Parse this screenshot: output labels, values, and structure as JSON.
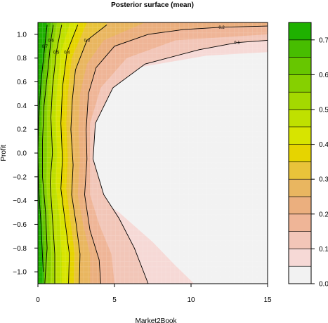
{
  "chart_data": {
    "type": "heatmap",
    "title": "Posterior surface (mean)",
    "xlabel": "Market2Book",
    "ylabel": "Profit",
    "xlim": [
      0,
      15
    ],
    "ylim": [
      -1.1,
      1.1
    ],
    "x_ticks": [
      "0",
      "5",
      "10",
      "15"
    ],
    "y_ticks": [
      "1.0",
      "0.8",
      "0.6",
      "0.4",
      "0.2",
      "0.0",
      "−0.2",
      "−0.4",
      "−0.6",
      "−0.8",
      "−1.0"
    ],
    "colorbar": {
      "levels": [
        0.0,
        0.05,
        0.1,
        0.15,
        0.2,
        0.25,
        0.3,
        0.35,
        0.4,
        0.45,
        0.5,
        0.55,
        0.6,
        0.65,
        0.7,
        0.75
      ],
      "tick_labels": [
        "0.0",
        "0.1",
        "0.2",
        "0.3",
        "0.4",
        "0.5",
        "0.6",
        "0.7"
      ],
      "colors": [
        "#f2f2f2",
        "#f6d9d6",
        "#f2c6b8",
        "#efb597",
        "#ebaf7e",
        "#e9b660",
        "#e9c33a",
        "#e6d400",
        "#d7e400",
        "#bfe000",
        "#a4d900",
        "#86d000",
        "#67c600",
        "#47bd00",
        "#1fb100"
      ]
    },
    "contours": [
      {
        "level": 0.7,
        "label": "0.7",
        "points": [
          [
            0.35,
            -1.0
          ],
          [
            0.2,
            -0.6
          ],
          [
            0.05,
            -0.3
          ],
          [
            0.0,
            0.0
          ],
          [
            0.05,
            0.3
          ],
          [
            0.2,
            0.6
          ],
          [
            0.45,
            0.9
          ],
          [
            0.6,
            1.08
          ]
        ]
      },
      {
        "level": 0.6,
        "label": "0.6",
        "points": [
          [
            0.45,
            -1.1
          ],
          [
            0.6,
            -0.8
          ],
          [
            0.5,
            -0.5
          ],
          [
            0.3,
            -0.2
          ],
          [
            0.3,
            0.1
          ],
          [
            0.4,
            0.4
          ],
          [
            0.65,
            0.7
          ],
          [
            0.85,
            0.95
          ],
          [
            1.0,
            1.08
          ]
        ]
      },
      {
        "level": 0.5,
        "label": "0.5",
        "points": [
          [
            1.1,
            -1.1
          ],
          [
            1.1,
            -0.85
          ],
          [
            0.95,
            -0.55
          ],
          [
            0.8,
            -0.25
          ],
          [
            0.95,
            0.0
          ],
          [
            0.85,
            0.3
          ],
          [
            0.95,
            0.55
          ],
          [
            1.2,
            0.85
          ],
          [
            1.55,
            1.08
          ]
        ]
      },
      {
        "level": 0.4,
        "label": "0.4",
        "points": [
          [
            2.0,
            -1.1
          ],
          [
            2.05,
            -0.85
          ],
          [
            1.8,
            -0.6
          ],
          [
            1.5,
            -0.3
          ],
          [
            1.6,
            -0.05
          ],
          [
            1.5,
            0.25
          ],
          [
            1.6,
            0.55
          ],
          [
            1.9,
            0.85
          ],
          [
            2.6,
            1.08
          ]
        ]
      },
      {
        "level": 0.3,
        "label": "0.3",
        "points": [
          [
            2.7,
            -1.1
          ],
          [
            2.75,
            -0.85
          ],
          [
            2.5,
            -0.6
          ],
          [
            2.2,
            -0.35
          ],
          [
            2.3,
            -0.1
          ],
          [
            2.15,
            0.2
          ],
          [
            2.25,
            0.45
          ],
          [
            2.45,
            0.7
          ],
          [
            3.2,
            0.95
          ],
          [
            4.5,
            1.08
          ]
        ]
      },
      {
        "level": 0.2,
        "label": "0.2",
        "points": [
          [
            4.1,
            -1.1
          ],
          [
            4.0,
            -0.9
          ],
          [
            3.4,
            -0.65
          ],
          [
            3.05,
            -0.35
          ],
          [
            3.2,
            -0.05
          ],
          [
            3.15,
            0.2
          ],
          [
            3.3,
            0.5
          ],
          [
            3.8,
            0.72
          ],
          [
            5.0,
            0.9
          ],
          [
            7.2,
            1.0
          ],
          [
            9.5,
            1.04
          ],
          [
            12.0,
            1.06
          ],
          [
            15.0,
            1.07
          ]
        ]
      },
      {
        "level": 0.1,
        "label": "0.1",
        "points": [
          [
            7.2,
            -1.1
          ],
          [
            6.3,
            -0.8
          ],
          [
            5.3,
            -0.55
          ],
          [
            4.3,
            -0.35
          ],
          [
            3.6,
            -0.05
          ],
          [
            3.75,
            0.25
          ],
          [
            4.9,
            0.55
          ],
          [
            7.0,
            0.75
          ],
          [
            10.5,
            0.87
          ],
          [
            13.0,
            0.93
          ],
          [
            15.0,
            0.95
          ]
        ]
      }
    ]
  }
}
